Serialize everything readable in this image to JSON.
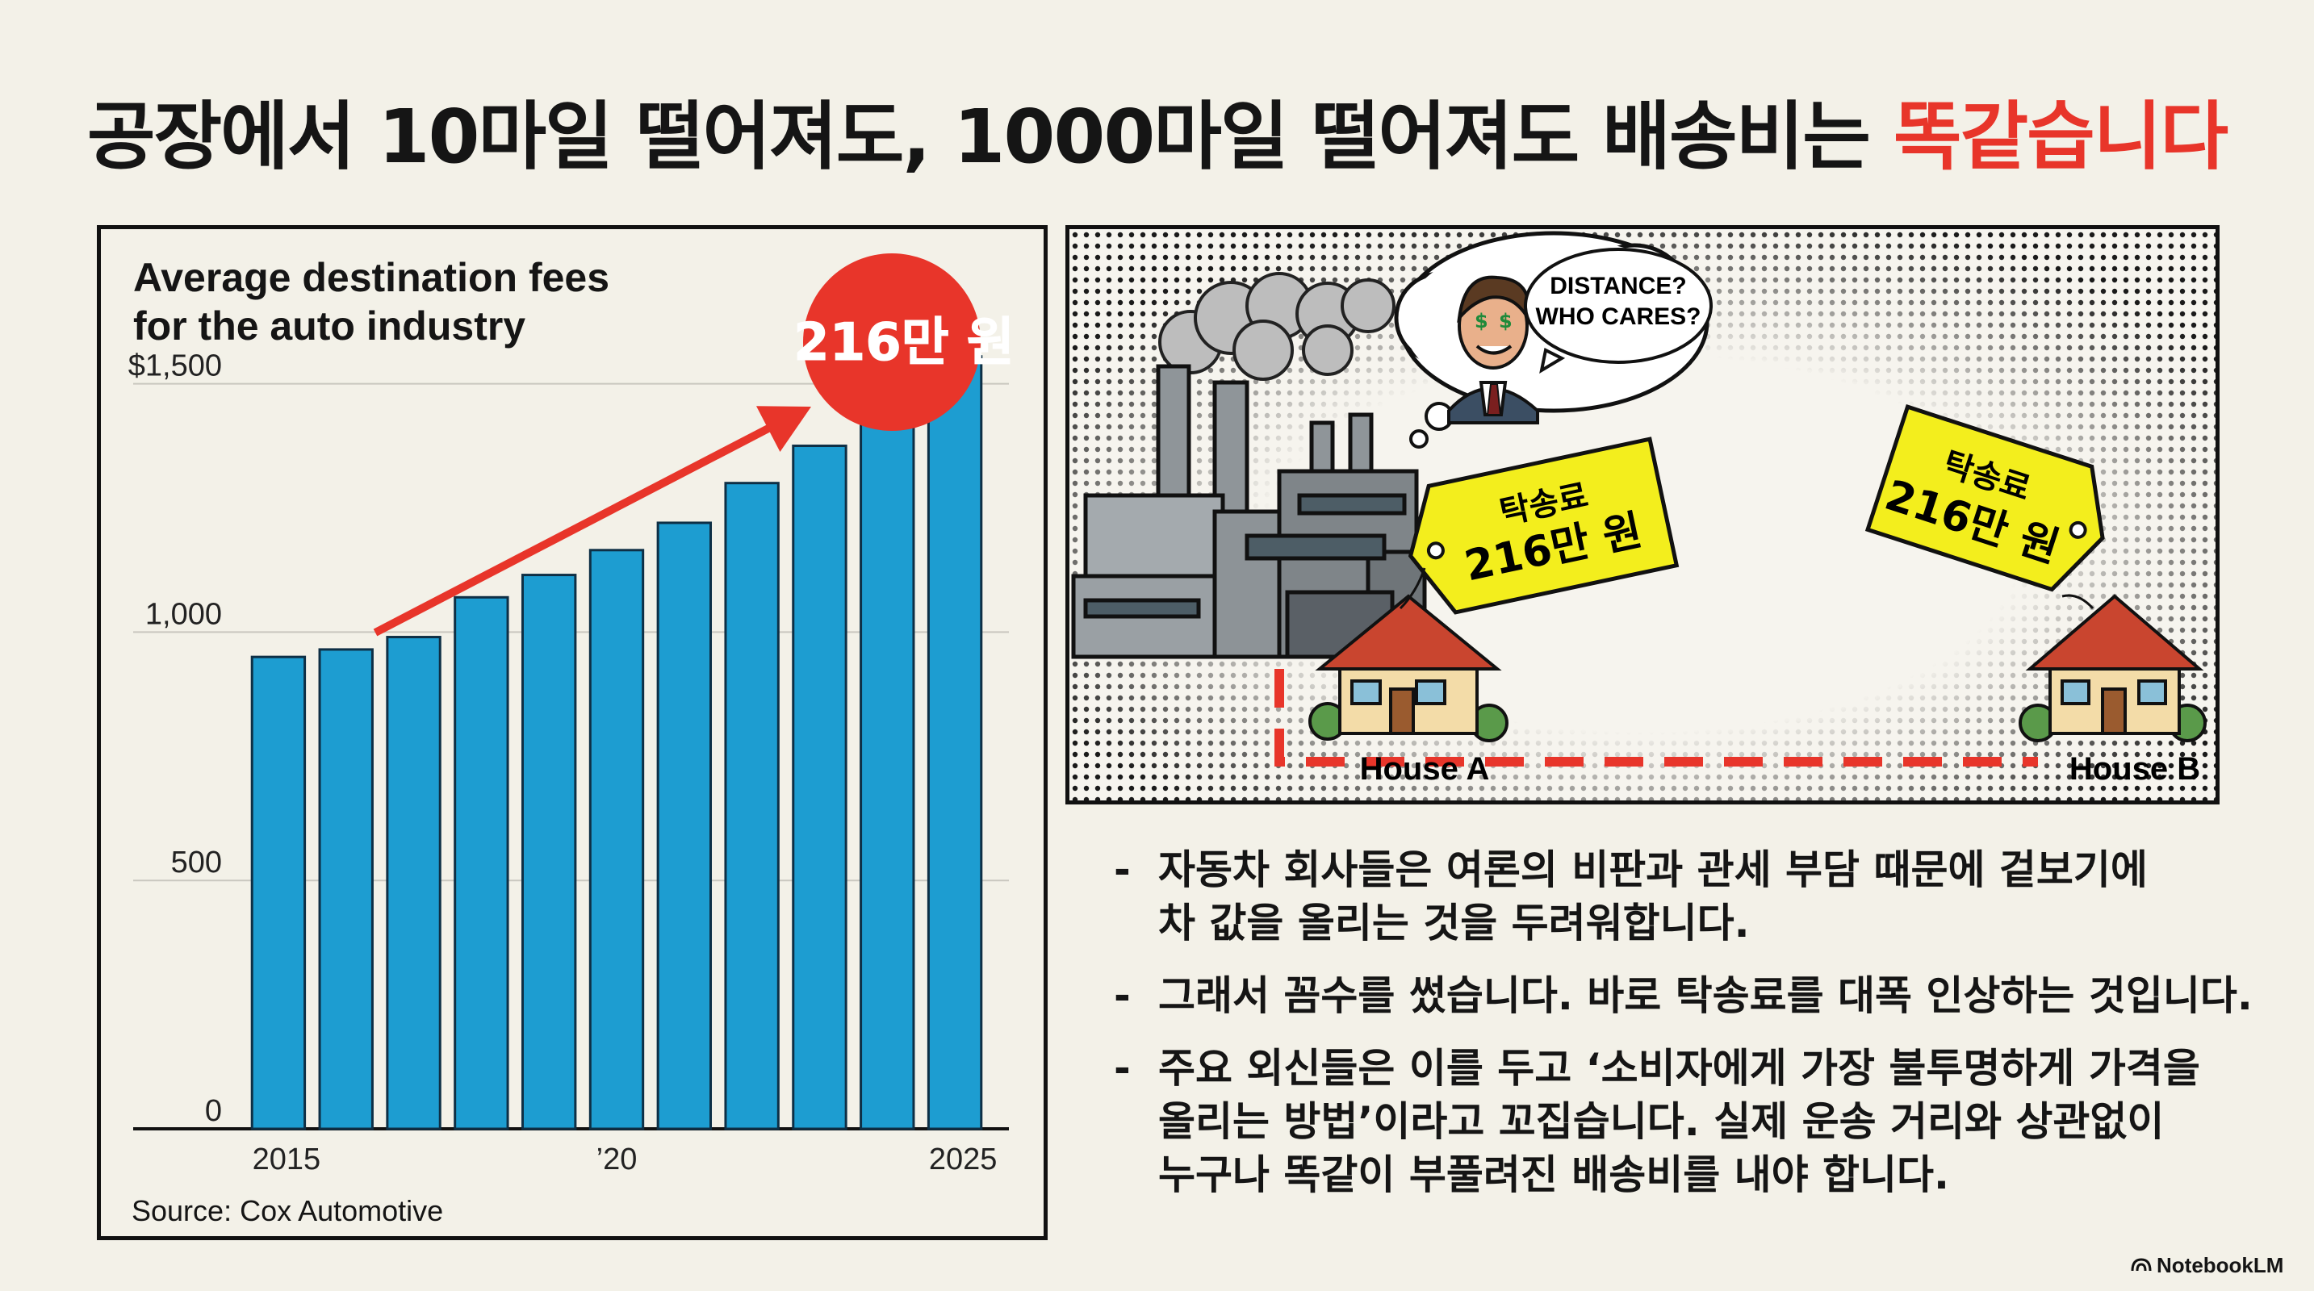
{
  "title": {
    "main": "공장에서 10마일 떨어져도, 1000마일 떨어져도 배송비는 ",
    "highlight": "똑같습니다"
  },
  "colors": {
    "accent": "#e8352a",
    "bar": "#1d9dd1",
    "tag": "#f3ee1d",
    "background": "#f3f1e8"
  },
  "chart_data": {
    "type": "bar",
    "title_lines": [
      "Average destination fees",
      "for the auto industry"
    ],
    "x": [
      2015,
      2016,
      2017,
      2018,
      2019,
      2020,
      2021,
      2022,
      2023,
      2024,
      2025
    ],
    "values": [
      950,
      965,
      990,
      1070,
      1115,
      1165,
      1220,
      1300,
      1375,
      1420,
      1555
    ],
    "y_ticks": [
      "$1,500",
      "1,000",
      "500",
      "0"
    ],
    "x_ticks": [
      "2015",
      "’20",
      "2025"
    ],
    "ylim": [
      0,
      1600
    ],
    "grid": true,
    "callout": "216만 원",
    "source": "Source: Cox Automotive"
  },
  "comic": {
    "thought_text": [
      "DISTANCE?",
      "WHO CARES?"
    ],
    "tag_a": [
      "탁송료",
      "216만 원"
    ],
    "tag_b": [
      "탁송료",
      "216만 원"
    ],
    "house_a": "House A",
    "house_b": "House B"
  },
  "bullets": [
    {
      "dash": "-",
      "lines": [
        "자동차 회사들은 여론의 비판과 관세 부담 때문에 겉보기에",
        "차 값을 올리는 것을 두려워합니다."
      ]
    },
    {
      "dash": "-",
      "lines": [
        "그래서 꼼수를 썼습니다. 바로 탁송료를 대폭 인상하는 것입니다."
      ]
    },
    {
      "dash": "-",
      "lines": [
        "주요 외신들은 이를 두고 ‘소비자에게 가장 불투명하게 가격을",
        "올리는 방법’이라고 꼬집습니다. 실제 운송 거리와 상관없이",
        "누구나 똑같이 부풀려진 배송비를 내야 합니다."
      ]
    }
  ],
  "brand": {
    "icon": "notebooklm-icon",
    "label": "NotebookLM"
  }
}
